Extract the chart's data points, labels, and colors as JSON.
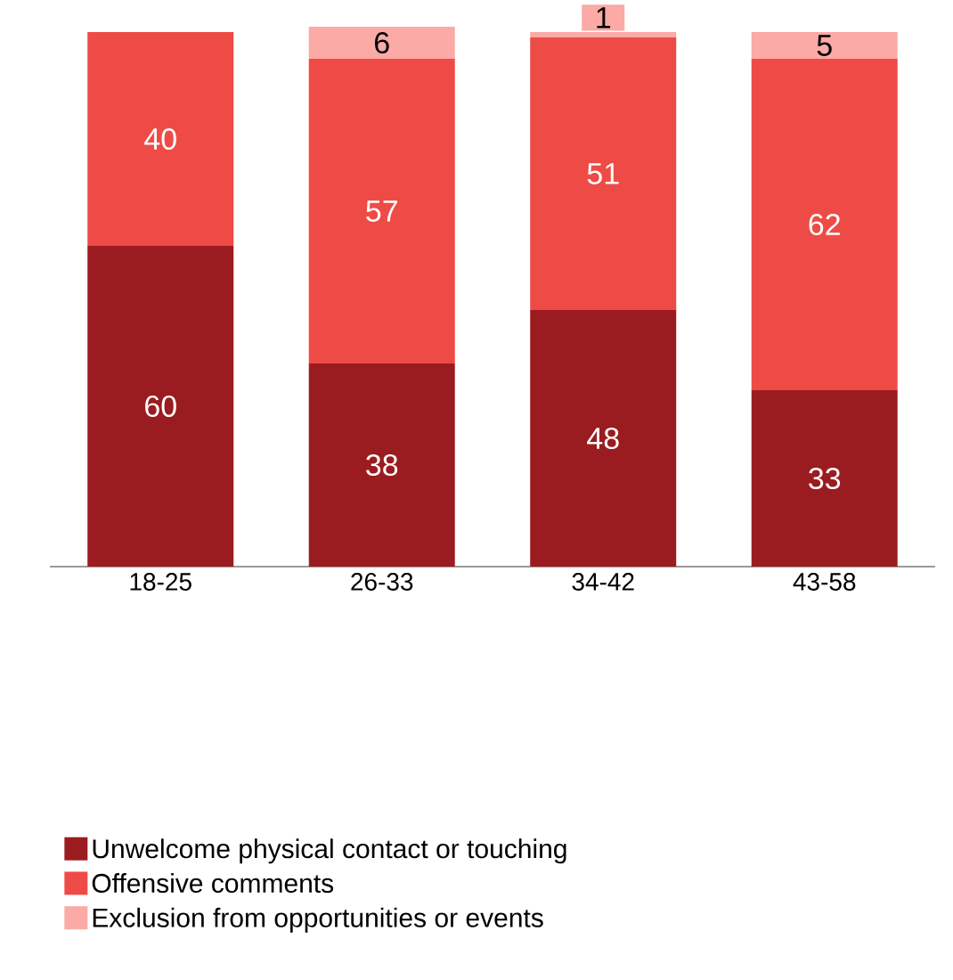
{
  "chart_data": {
    "type": "bar",
    "stacked": true,
    "categories": [
      "18-25",
      "26-33",
      "34-42",
      "43-58"
    ],
    "series": [
      {
        "name": "Unwelcome physical contact or touching",
        "color": "#9b1c20",
        "values": [
          60,
          38,
          48,
          33
        ]
      },
      {
        "name": "Offensive comments",
        "color": "#ef4b46",
        "values": [
          40,
          57,
          51,
          62
        ]
      },
      {
        "name": "Exclusion from opportunities or events",
        "color": "#fbaaa6",
        "values": [
          null,
          6,
          1,
          5
        ]
      }
    ],
    "ylim": [
      0,
      101
    ],
    "data_labels": true,
    "tick_labels": "x",
    "legend": "bottom"
  }
}
